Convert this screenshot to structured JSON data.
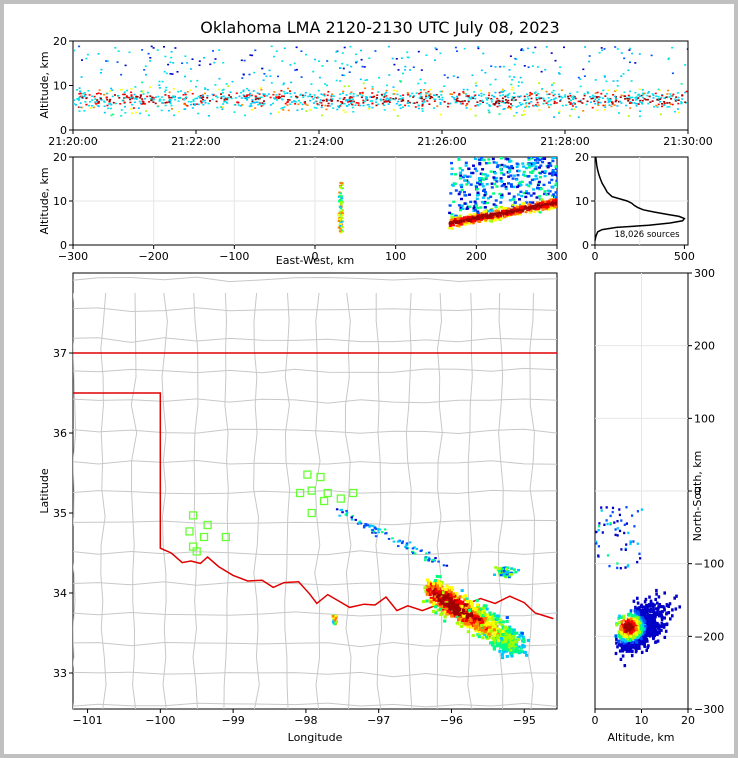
{
  "chart_data": {
    "type": "scatter",
    "title": "Oklahoma LMA 2120-2130 UTC July 08, 2023",
    "colormap": [
      "#0000c8",
      "#0050ff",
      "#00c8ff",
      "#00ff80",
      "#a0ff00",
      "#ffff00",
      "#ff8000",
      "#ff0000",
      "#a00000"
    ],
    "panels": {
      "time_height": {
        "ylabel": "Altitude, km",
        "ylim": [
          0,
          20
        ],
        "y_ticks": [
          "0",
          "10",
          "20"
        ],
        "x_ticks": [
          "21:20:00",
          "21:22:00",
          "21:24:00",
          "21:26:00",
          "21:28:00",
          "21:30:00"
        ],
        "x_tick_minutes": [
          0,
          2,
          4,
          6,
          8,
          10
        ],
        "xlim_minutes": [
          0,
          10
        ],
        "band_altitude_km": [
          3,
          15
        ],
        "peak_altitude_km": 7
      },
      "ew_height": {
        "xlabel": "East-West, km",
        "ylabel": "Altitude, km",
        "xlim": [
          -300,
          300
        ],
        "ylim": [
          0,
          20
        ],
        "x_ticks": [
          "−300",
          "−200",
          "−100",
          "0",
          "100",
          "200",
          "300"
        ],
        "x_tick_values": [
          -300,
          -200,
          -100,
          0,
          100,
          200,
          300
        ],
        "y_ticks": [
          "0",
          "10",
          "20"
        ],
        "y_tick_values": [
          0,
          10,
          20
        ]
      },
      "histogram": {
        "xlim": [
          0,
          520
        ],
        "ylim": [
          0,
          20
        ],
        "x_ticks": [
          "0",
          "500"
        ],
        "x_tick_values": [
          0,
          500
        ],
        "y_ticks": [
          "0",
          "10",
          "20"
        ],
        "y_tick_values": [
          0,
          10,
          20
        ],
        "annotation": "18,026 sources",
        "altitude_km": [
          1,
          2,
          3,
          3.5,
          4,
          4.5,
          5,
          5.5,
          6,
          6.5,
          7,
          7.5,
          8,
          8.5,
          9,
          9.5,
          10,
          11,
          12,
          13,
          14,
          15,
          16,
          17,
          18,
          19,
          20
        ],
        "count": [
          0,
          5,
          15,
          40,
          120,
          300,
          420,
          490,
          500,
          470,
          400,
          330,
          270,
          240,
          220,
          205,
          180,
          95,
          68,
          55,
          40,
          30,
          22,
          15,
          10,
          7,
          4
        ]
      },
      "plan": {
        "xlabel": "Longitude",
        "ylabel": "Latitude",
        "xlim": [
          -101.2,
          -94.55
        ],
        "ylim": [
          32.55,
          38
        ],
        "x_ticks": [
          "−101",
          "−100",
          "−99",
          "−98",
          "−97",
          "−96",
          "−95"
        ],
        "x_tick_values": [
          -101,
          -100,
          -99,
          -98,
          -97,
          -96,
          -95
        ],
        "y_ticks": [
          "33",
          "34",
          "35",
          "36",
          "37"
        ],
        "y_tick_values": [
          33,
          34,
          35,
          36,
          37
        ],
        "stations": [
          [
            -99.55,
            34.97
          ],
          [
            -99.35,
            34.85
          ],
          [
            -99.6,
            34.77
          ],
          [
            -99.4,
            34.7
          ],
          [
            -99.1,
            34.7
          ],
          [
            -99.55,
            34.58
          ],
          [
            -99.5,
            34.52
          ],
          [
            -97.98,
            35.48
          ],
          [
            -97.8,
            35.45
          ],
          [
            -97.92,
            35.28
          ],
          [
            -98.08,
            35.25
          ],
          [
            -97.7,
            35.25
          ],
          [
            -97.35,
            35.25
          ],
          [
            -97.52,
            35.18
          ],
          [
            -97.75,
            35.15
          ],
          [
            -97.92,
            35.0
          ]
        ],
        "storm_core": {
          "lon": [
            -96.3,
            -95.1
          ],
          "lat": [
            34.05,
            33.35
          ]
        }
      },
      "ns_height": {
        "xlabel": "Altitude, km",
        "ylabel": "North-South, km",
        "xlim": [
          0,
          20
        ],
        "ylim": [
          -300,
          300
        ],
        "x_ticks": [
          "0",
          "10",
          "20"
        ],
        "x_tick_values": [
          0,
          10,
          20
        ],
        "y_ticks": [
          "−300",
          "−200",
          "−100",
          "0",
          "100",
          "200",
          "300"
        ],
        "y_tick_values": [
          -300,
          -200,
          -100,
          0,
          100,
          200,
          300
        ]
      }
    }
  }
}
